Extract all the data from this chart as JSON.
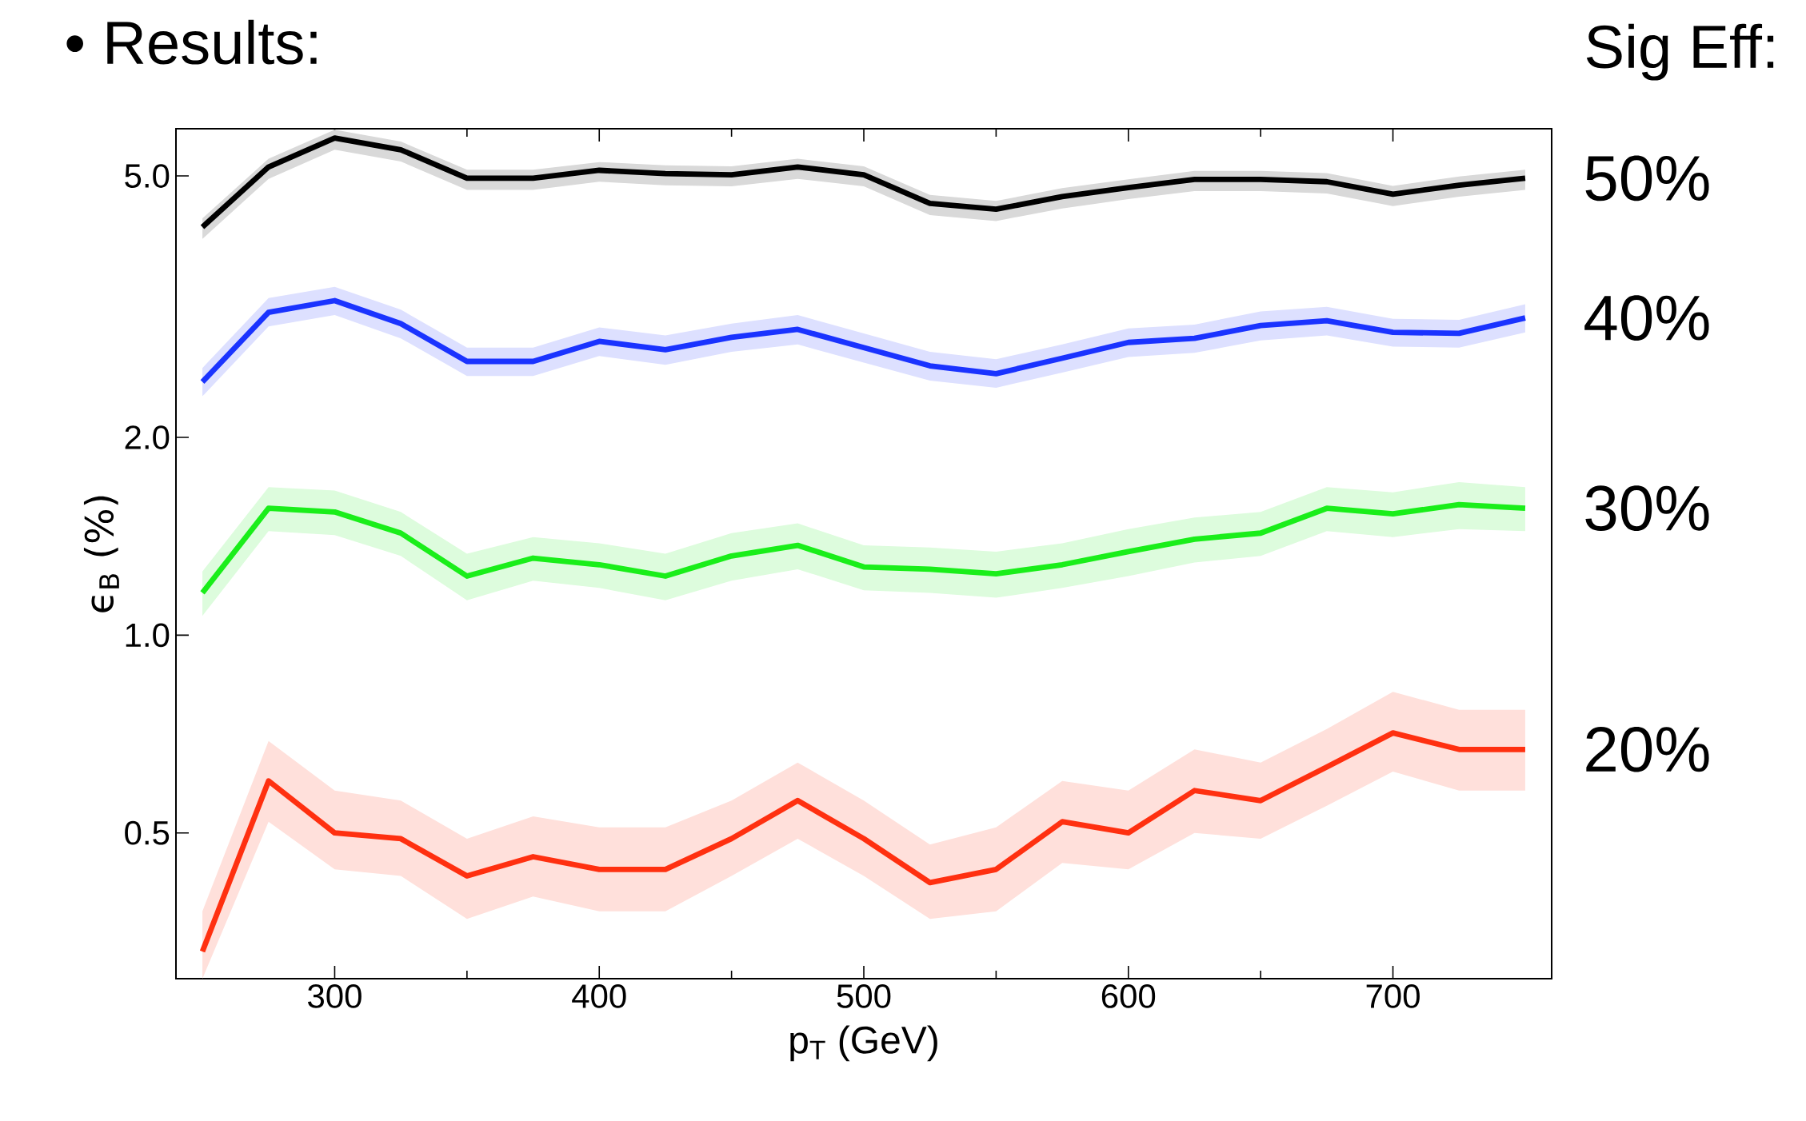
{
  "chart_data": {
    "type": "line",
    "title": "• Results:",
    "xlabel": "p$_{T}$ (GeV)",
    "ylabel": "ϵ$_{B}$ (%)",
    "legend_title": "Sig Eff:",
    "x": [
      250,
      275,
      300,
      325,
      350,
      375,
      400,
      425,
      450,
      475,
      500,
      525,
      550,
      575,
      600,
      625,
      650,
      675,
      700,
      725,
      750
    ],
    "log": "y",
    "legend": "right",
    "xlim": [
      240,
      760
    ],
    "ylim": [
      0.3,
      5.9
    ],
    "xticks": [
      300,
      400,
      500,
      600,
      700
    ],
    "yticks": [
      {
        "value": 0.5,
        "label": "0.5"
      },
      {
        "value": 1,
        "label": "1.0"
      },
      {
        "value": 2,
        "label": "2.0"
      },
      {
        "value": 5,
        "label": "5.0"
      }
    ],
    "series": [
      {
        "name": "50%",
        "color": "#000000",
        "values": [
          4.18,
          5.16,
          5.71,
          5.48,
          4.96,
          4.96,
          5.1,
          5.04,
          5.02,
          5.16,
          5.02,
          4.54,
          4.45,
          4.65,
          4.8,
          4.94,
          4.94,
          4.9,
          4.69,
          4.84,
          4.96
        ],
        "lower": [
          4.01,
          4.95,
          5.48,
          5.26,
          4.76,
          4.76,
          4.9,
          4.84,
          4.82,
          4.95,
          4.82,
          4.36,
          4.27,
          4.46,
          4.61,
          4.74,
          4.74,
          4.7,
          4.5,
          4.65,
          4.76
        ],
        "upper": [
          4.31,
          5.31,
          5.88,
          5.64,
          5.11,
          5.11,
          5.25,
          5.19,
          5.17,
          5.31,
          5.17,
          4.68,
          4.58,
          4.79,
          4.94,
          5.09,
          5.09,
          5.05,
          4.83,
          4.99,
          5.11
        ]
      },
      {
        "name": "40%",
        "color": "#1a33ff",
        "values": [
          2.43,
          3.1,
          3.23,
          2.98,
          2.61,
          2.61,
          2.8,
          2.72,
          2.84,
          2.92,
          2.74,
          2.57,
          2.5,
          2.64,
          2.79,
          2.83,
          2.96,
          3.01,
          2.89,
          2.88,
          3.04
        ],
        "lower": [
          2.31,
          2.95,
          3.07,
          2.83,
          2.48,
          2.48,
          2.66,
          2.58,
          2.7,
          2.77,
          2.6,
          2.44,
          2.38,
          2.51,
          2.65,
          2.69,
          2.81,
          2.86,
          2.75,
          2.74,
          2.89
        ],
        "upper": [
          2.55,
          3.26,
          3.39,
          3.13,
          2.74,
          2.74,
          2.94,
          2.86,
          2.98,
          3.07,
          2.88,
          2.7,
          2.63,
          2.77,
          2.93,
          2.97,
          3.11,
          3.16,
          3.03,
          3.02,
          3.19
        ]
      },
      {
        "name": "30%",
        "color": "#1aee1a",
        "values": [
          1.16,
          1.56,
          1.54,
          1.43,
          1.23,
          1.31,
          1.28,
          1.23,
          1.32,
          1.37,
          1.27,
          1.26,
          1.24,
          1.28,
          1.34,
          1.4,
          1.43,
          1.56,
          1.53,
          1.58,
          1.56
        ],
        "lower": [
          1.07,
          1.44,
          1.42,
          1.32,
          1.13,
          1.21,
          1.18,
          1.13,
          1.21,
          1.26,
          1.17,
          1.16,
          1.14,
          1.18,
          1.23,
          1.29,
          1.32,
          1.44,
          1.41,
          1.45,
          1.44
        ],
        "upper": [
          1.25,
          1.68,
          1.66,
          1.54,
          1.33,
          1.41,
          1.38,
          1.33,
          1.43,
          1.48,
          1.37,
          1.36,
          1.34,
          1.38,
          1.45,
          1.51,
          1.54,
          1.68,
          1.65,
          1.71,
          1.68
        ]
      },
      {
        "name": "20%",
        "color": "#ff3010",
        "values": [
          0.33,
          0.6,
          0.5,
          0.49,
          0.43,
          0.46,
          0.44,
          0.44,
          0.49,
          0.56,
          0.49,
          0.42,
          0.44,
          0.52,
          0.5,
          0.58,
          0.56,
          0.63,
          0.71,
          0.67,
          0.67
        ],
        "lower": [
          0.3,
          0.52,
          0.44,
          0.43,
          0.37,
          0.4,
          0.38,
          0.38,
          0.43,
          0.49,
          0.43,
          0.37,
          0.38,
          0.45,
          0.44,
          0.5,
          0.49,
          0.55,
          0.62,
          0.58,
          0.58
        ],
        "upper": [
          0.38,
          0.69,
          0.58,
          0.56,
          0.49,
          0.53,
          0.51,
          0.51,
          0.56,
          0.64,
          0.56,
          0.48,
          0.51,
          0.6,
          0.58,
          0.67,
          0.64,
          0.72,
          0.82,
          0.77,
          0.77
        ]
      }
    ]
  }
}
